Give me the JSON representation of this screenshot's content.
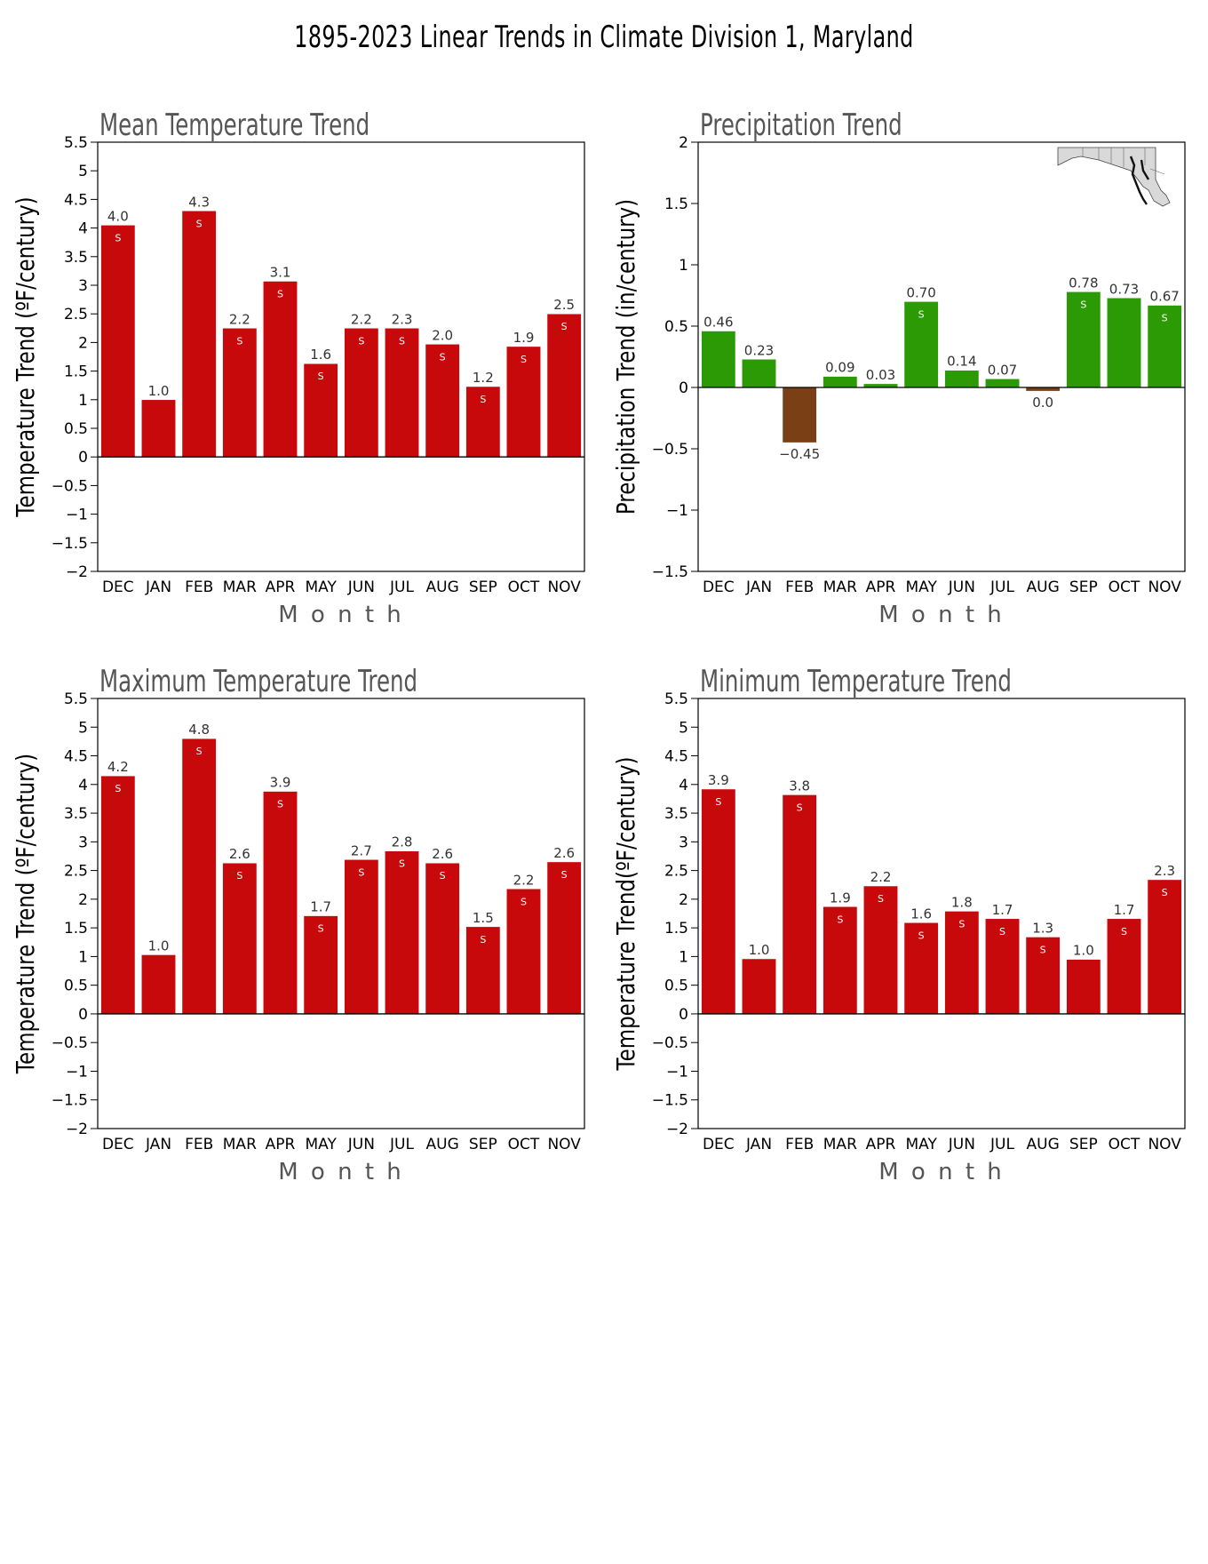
{
  "title": "1895-2023 Linear Trends in Climate Division 1, Maryland",
  "colors": {
    "positive_temp": "#c8090c",
    "positive_precip": "#2b9a05",
    "negative_precip": "#7a3f15",
    "axis": "#000000",
    "label": "#555555"
  },
  "chart_data": [
    {
      "type": "bar",
      "title": "Mean Temperature Trend",
      "xlabel": "M o n t h",
      "ylabel": "Temperature Trend (ºF/century)",
      "ylim": [
        -2,
        5.5
      ],
      "ytick_step": 0.5,
      "ytick_labels": [
        "−2",
        "−1.5",
        "−1",
        "−0.5",
        "0",
        "0.5",
        "1",
        "1.5",
        "2",
        "2.5",
        "3",
        "3.5",
        "4",
        "4.5",
        "5",
        "5.5"
      ],
      "categories": [
        "DEC",
        "JAN",
        "FEB",
        "MAR",
        "APR",
        "MAY",
        "JUN",
        "JUL",
        "AUG",
        "SEP",
        "OCT",
        "NOV"
      ],
      "values": [
        4.05,
        1.0,
        4.3,
        2.25,
        3.07,
        1.63,
        2.25,
        2.25,
        1.97,
        1.23,
        1.93,
        2.5
      ],
      "value_labels": [
        "4.0",
        "1.0",
        "4.3",
        "2.2",
        "3.1",
        "1.6",
        "2.2",
        "2.3",
        "2.0",
        "1.2",
        "1.9",
        "2.5"
      ],
      "significant": [
        true,
        false,
        true,
        true,
        true,
        true,
        true,
        true,
        true,
        true,
        true,
        true
      ],
      "significance_mark": "S",
      "map_inset": false
    },
    {
      "type": "bar",
      "title": "Precipitation Trend",
      "xlabel": "M o n t h",
      "ylabel": "Precipitation Trend (in/century)",
      "ylim": [
        -1.5,
        2
      ],
      "ytick_step": 0.5,
      "ytick_labels": [
        "−1.5",
        "−1",
        "−0.5",
        "0",
        "0.5",
        "1",
        "1.5",
        "2"
      ],
      "categories": [
        "DEC",
        "JAN",
        "FEB",
        "MAR",
        "APR",
        "MAY",
        "JUN",
        "JUL",
        "AUG",
        "SEP",
        "OCT",
        "NOV"
      ],
      "values": [
        0.46,
        0.23,
        -0.45,
        0.09,
        0.03,
        0.7,
        0.14,
        0.07,
        -0.03,
        0.78,
        0.73,
        0.67
      ],
      "value_labels": [
        "0.46",
        "0.23",
        "−0.45",
        "0.09",
        "0.03",
        "0.70",
        "0.14",
        "0.07",
        "0.0",
        "0.78",
        "0.73",
        "0.67"
      ],
      "significant": [
        false,
        false,
        false,
        false,
        false,
        true,
        false,
        false,
        false,
        true,
        false,
        true
      ],
      "significance_mark": "S",
      "map_inset": true
    },
    {
      "type": "bar",
      "title": "Maximum Temperature Trend",
      "xlabel": "M o n t h",
      "ylabel": "Temperature Trend (ºF/century)",
      "ylim": [
        -2,
        5.5
      ],
      "ytick_step": 0.5,
      "ytick_labels": [
        "−2",
        "−1.5",
        "−1",
        "−0.5",
        "0",
        "0.5",
        "1",
        "1.5",
        "2",
        "2.5",
        "3",
        "3.5",
        "4",
        "4.5",
        "5",
        "5.5"
      ],
      "categories": [
        "DEC",
        "JAN",
        "FEB",
        "MAR",
        "APR",
        "MAY",
        "JUN",
        "JUL",
        "AUG",
        "SEP",
        "OCT",
        "NOV"
      ],
      "values": [
        4.15,
        1.03,
        4.8,
        2.63,
        3.88,
        1.71,
        2.69,
        2.84,
        2.63,
        1.52,
        2.18,
        2.65
      ],
      "value_labels": [
        "4.2",
        "1.0",
        "4.8",
        "2.6",
        "3.9",
        "1.7",
        "2.7",
        "2.8",
        "2.6",
        "1.5",
        "2.2",
        "2.6"
      ],
      "significant": [
        true,
        false,
        true,
        true,
        true,
        true,
        true,
        true,
        true,
        true,
        true,
        true
      ],
      "significance_mark": "S",
      "map_inset": false
    },
    {
      "type": "bar",
      "title": "Minimum Temperature Trend",
      "xlabel": "M o n t h",
      "ylabel": "Temperature Trend(ºF/century)",
      "ylim": [
        -2,
        5.5
      ],
      "ytick_step": 0.5,
      "ytick_labels": [
        "−2",
        "−1.5",
        "−1",
        "−0.5",
        "0",
        "0.5",
        "1",
        "1.5",
        "2",
        "2.5",
        "3",
        "3.5",
        "4",
        "4.5",
        "5",
        "5.5"
      ],
      "categories": [
        "DEC",
        "JAN",
        "FEB",
        "MAR",
        "APR",
        "MAY",
        "JUN",
        "JUL",
        "AUG",
        "SEP",
        "OCT",
        "NOV"
      ],
      "values": [
        3.92,
        0.96,
        3.82,
        1.87,
        2.23,
        1.59,
        1.79,
        1.66,
        1.34,
        0.95,
        1.66,
        2.34
      ],
      "value_labels": [
        "3.9",
        "1.0",
        "3.8",
        "1.9",
        "2.2",
        "1.6",
        "1.8",
        "1.7",
        "1.3",
        "1.0",
        "1.7",
        "2.3"
      ],
      "significant": [
        true,
        false,
        true,
        true,
        true,
        true,
        true,
        true,
        true,
        false,
        true,
        true
      ],
      "significance_mark": "S",
      "map_inset": false
    }
  ]
}
